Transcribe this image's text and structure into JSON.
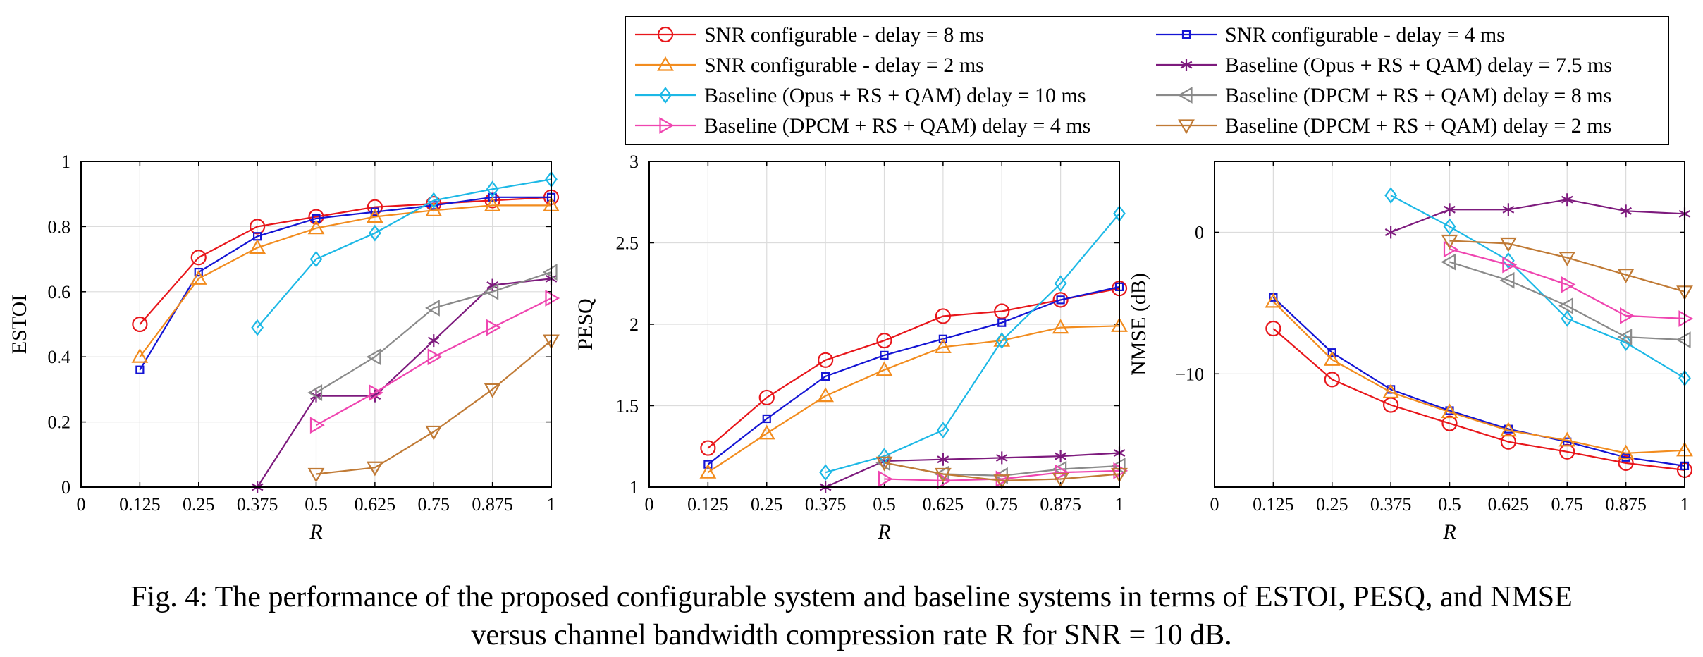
{
  "legend": {
    "entries": [
      {
        "label": "SNR configurable - delay = 8 ms",
        "color": "#e8161b",
        "marker": "circle"
      },
      {
        "label": "SNR configurable - delay = 4 ms",
        "color": "#1414d4",
        "marker": "square"
      },
      {
        "label": "SNR configurable - delay = 2 ms",
        "color": "#f28c1e",
        "marker": "triangle-up"
      },
      {
        "label": "Baseline (Opus + RS + QAM) delay = 7.5 ms",
        "color": "#7d1a7d",
        "marker": "star"
      },
      {
        "label": "Baseline (Opus + RS + QAM) delay = 10 ms",
        "color": "#1cb8e6",
        "marker": "diamond"
      },
      {
        "label": "Baseline (DPCM + RS + QAM) delay = 8 ms",
        "color": "#8a8a8a",
        "marker": "triangle-left"
      },
      {
        "label": "Baseline (DPCM + RS + QAM) delay = 4 ms",
        "color": "#ef45b0",
        "marker": "triangle-right"
      },
      {
        "label": "Baseline (DPCM + RS + QAM) delay = 2 ms",
        "color": "#c07a35",
        "marker": "triangle-down"
      }
    ]
  },
  "caption": {
    "line1": "Fig. 4: The performance of the proposed configurable system and baseline systems in terms of ESTOI, PESQ, and NMSE",
    "line2": "versus channel bandwidth compression rate R for SNR = 10 dB."
  },
  "chart_data": [
    {
      "type": "line",
      "title": "",
      "xlabel": "R",
      "ylabel": "ESTOI",
      "xlim": [
        0,
        1
      ],
      "ylim": [
        0,
        1
      ],
      "xticks": [
        0,
        0.125,
        0.25,
        0.375,
        0.5,
        0.625,
        0.75,
        0.875,
        1
      ],
      "xtick_labels": [
        "0",
        "0.125",
        "0.25",
        "0.375",
        "0.5",
        "0.625",
        "0.75",
        "0.875",
        "1"
      ],
      "yticks": [
        0,
        0.2,
        0.4,
        0.6,
        0.8,
        1
      ],
      "ytick_labels": [
        "0",
        "0.2",
        "0.4",
        "0.6",
        "0.8",
        "1"
      ],
      "grid": true,
      "series": [
        {
          "name": "SNR configurable - delay = 8 ms",
          "x": [
            0.125,
            0.25,
            0.375,
            0.5,
            0.625,
            0.75,
            0.875,
            1
          ],
          "y": [
            0.5,
            0.705,
            0.8,
            0.83,
            0.86,
            0.87,
            0.88,
            0.89
          ]
        },
        {
          "name": "SNR configurable - delay = 4 ms",
          "x": [
            0.125,
            0.25,
            0.375,
            0.5,
            0.625,
            0.75,
            0.875,
            1
          ],
          "y": [
            0.36,
            0.66,
            0.77,
            0.825,
            0.845,
            0.865,
            0.89,
            0.89
          ]
        },
        {
          "name": "SNR configurable - delay = 2 ms",
          "x": [
            0.125,
            0.25,
            0.375,
            0.5,
            0.625,
            0.75,
            0.875,
            1
          ],
          "y": [
            0.4,
            0.64,
            0.735,
            0.795,
            0.83,
            0.85,
            0.865,
            0.865
          ]
        },
        {
          "name": "Baseline (Opus + RS + QAM) delay = 7.5 ms",
          "x": [
            0.375,
            0.5,
            0.625,
            0.75,
            0.875,
            1
          ],
          "y": [
            0.0,
            0.28,
            0.28,
            0.45,
            0.62,
            0.64
          ]
        },
        {
          "name": "Baseline (Opus + RS + QAM) delay = 10 ms",
          "x": [
            0.375,
            0.5,
            0.625,
            0.75,
            0.875,
            1
          ],
          "y": [
            0.49,
            0.7,
            0.78,
            0.88,
            0.915,
            0.945
          ]
        },
        {
          "name": "Baseline (DPCM + RS + QAM) delay = 8 ms",
          "x": [
            0.5,
            0.625,
            0.75,
            0.875,
            1
          ],
          "y": [
            0.29,
            0.4,
            0.55,
            0.6,
            0.66
          ]
        },
        {
          "name": "Baseline (DPCM + RS + QAM) delay = 4 ms",
          "x": [
            0.5,
            0.625,
            0.75,
            0.875,
            1
          ],
          "y": [
            0.19,
            0.29,
            0.4,
            0.49,
            0.58
          ]
        },
        {
          "name": "Baseline (DPCM + RS + QAM) delay = 2 ms",
          "x": [
            0.5,
            0.625,
            0.75,
            0.875,
            1
          ],
          "y": [
            0.04,
            0.06,
            0.17,
            0.3,
            0.45
          ]
        }
      ]
    },
    {
      "type": "line",
      "title": "",
      "xlabel": "R",
      "ylabel": "PESQ",
      "xlim": [
        0,
        1
      ],
      "ylim": [
        1,
        3
      ],
      "xticks": [
        0,
        0.125,
        0.25,
        0.375,
        0.5,
        0.625,
        0.75,
        0.875,
        1
      ],
      "xtick_labels": [
        "0",
        "0.125",
        "0.25",
        "0.375",
        "0.5",
        "0.625",
        "0.75",
        "0.875",
        "1"
      ],
      "yticks": [
        1,
        1.5,
        2,
        2.5,
        3
      ],
      "ytick_labels": [
        "1",
        "1.5",
        "2",
        "2.5",
        "3"
      ],
      "grid": true,
      "series": [
        {
          "name": "SNR configurable - delay = 8 ms",
          "x": [
            0.125,
            0.25,
            0.375,
            0.5,
            0.625,
            0.75,
            0.875,
            1
          ],
          "y": [
            1.24,
            1.55,
            1.78,
            1.9,
            2.05,
            2.08,
            2.15,
            2.22
          ]
        },
        {
          "name": "SNR configurable - delay = 4 ms",
          "x": [
            0.125,
            0.25,
            0.375,
            0.5,
            0.625,
            0.75,
            0.875,
            1
          ],
          "y": [
            1.14,
            1.42,
            1.68,
            1.81,
            1.91,
            2.01,
            2.15,
            2.23
          ]
        },
        {
          "name": "SNR configurable - delay = 2 ms",
          "x": [
            0.125,
            0.25,
            0.375,
            0.5,
            0.625,
            0.75,
            0.875,
            1
          ],
          "y": [
            1.09,
            1.33,
            1.56,
            1.72,
            1.86,
            1.9,
            1.98,
            1.99
          ]
        },
        {
          "name": "Baseline (Opus + RS + QAM) delay = 7.5 ms",
          "x": [
            0.375,
            0.5,
            0.625,
            0.75,
            0.875,
            1
          ],
          "y": [
            1.0,
            1.16,
            1.17,
            1.18,
            1.19,
            1.21
          ]
        },
        {
          "name": "Baseline (Opus + RS + QAM) delay = 10 ms",
          "x": [
            0.375,
            0.5,
            0.625,
            0.75,
            0.875,
            1
          ],
          "y": [
            1.09,
            1.19,
            1.35,
            1.9,
            2.25,
            2.68
          ]
        },
        {
          "name": "Baseline (DPCM + RS + QAM) delay = 8 ms",
          "x": [
            0.5,
            0.625,
            0.75,
            0.875,
            1
          ],
          "y": [
            1.15,
            1.08,
            1.07,
            1.11,
            1.13
          ]
        },
        {
          "name": "Baseline (DPCM + RS + QAM) delay = 4 ms",
          "x": [
            0.5,
            0.625,
            0.75,
            0.875,
            1
          ],
          "y": [
            1.05,
            1.04,
            1.05,
            1.09,
            1.1
          ]
        },
        {
          "name": "Baseline (DPCM + RS + QAM) delay = 2 ms",
          "x": [
            0.5,
            0.625,
            0.75,
            0.875,
            1
          ],
          "y": [
            1.15,
            1.08,
            1.04,
            1.05,
            1.08
          ]
        }
      ]
    },
    {
      "type": "line",
      "title": "",
      "xlabel": "R",
      "ylabel": "NMSE (dB)",
      "xlim": [
        0,
        1
      ],
      "ylim": [
        -18,
        5
      ],
      "xticks": [
        0,
        0.125,
        0.25,
        0.375,
        0.5,
        0.625,
        0.75,
        0.875,
        1
      ],
      "xtick_labels": [
        "0",
        "0.125",
        "0.25",
        "0.375",
        "0.5",
        "0.625",
        "0.75",
        "0.875",
        "1"
      ],
      "yticks": [
        -10,
        0
      ],
      "ytick_labels": [
        "−10",
        "0"
      ],
      "grid": true,
      "series": [
        {
          "name": "SNR configurable - delay = 8 ms",
          "x": [
            0.125,
            0.25,
            0.375,
            0.5,
            0.625,
            0.75,
            0.875,
            1
          ],
          "y": [
            -6.8,
            -10.4,
            -12.2,
            -13.5,
            -14.8,
            -15.5,
            -16.3,
            -16.8
          ]
        },
        {
          "name": "SNR configurable - delay = 4 ms",
          "x": [
            0.125,
            0.25,
            0.375,
            0.5,
            0.625,
            0.75,
            0.875,
            1
          ],
          "y": [
            -4.6,
            -8.5,
            -11.1,
            -12.6,
            -13.9,
            -14.8,
            -15.9,
            -16.5
          ]
        },
        {
          "name": "SNR configurable - delay = 2 ms",
          "x": [
            0.125,
            0.25,
            0.375,
            0.5,
            0.625,
            0.75,
            0.875,
            1
          ],
          "y": [
            -4.9,
            -9.0,
            -11.3,
            -12.7,
            -14.0,
            -14.7,
            -15.6,
            -15.4
          ]
        },
        {
          "name": "Baseline (Opus + RS + QAM) delay = 7.5 ms",
          "x": [
            0.375,
            0.5,
            0.625,
            0.75,
            0.875,
            1
          ],
          "y": [
            0.0,
            1.6,
            1.6,
            2.3,
            1.5,
            1.3
          ]
        },
        {
          "name": "Baseline (Opus + RS + QAM) delay = 10 ms",
          "x": [
            0.375,
            0.5,
            0.625,
            0.75,
            0.875,
            1
          ],
          "y": [
            2.6,
            0.4,
            -2.0,
            -6.1,
            -7.8,
            -10.3
          ]
        },
        {
          "name": "Baseline (DPCM + RS + QAM) delay = 8 ms",
          "x": [
            0.5,
            0.625,
            0.75,
            0.875,
            1
          ],
          "y": [
            -2.1,
            -3.4,
            -5.2,
            -7.4,
            -7.6
          ]
        },
        {
          "name": "Baseline (DPCM + RS + QAM) delay = 4 ms",
          "x": [
            0.5,
            0.625,
            0.75,
            0.875,
            1
          ],
          "y": [
            -1.2,
            -2.3,
            -3.7,
            -5.9,
            -6.1
          ]
        },
        {
          "name": "Baseline (DPCM + RS + QAM) delay = 2 ms",
          "x": [
            0.5,
            0.625,
            0.75,
            0.875,
            1
          ],
          "y": [
            -0.6,
            -0.8,
            -1.8,
            -3.0,
            -4.2
          ]
        }
      ]
    }
  ]
}
